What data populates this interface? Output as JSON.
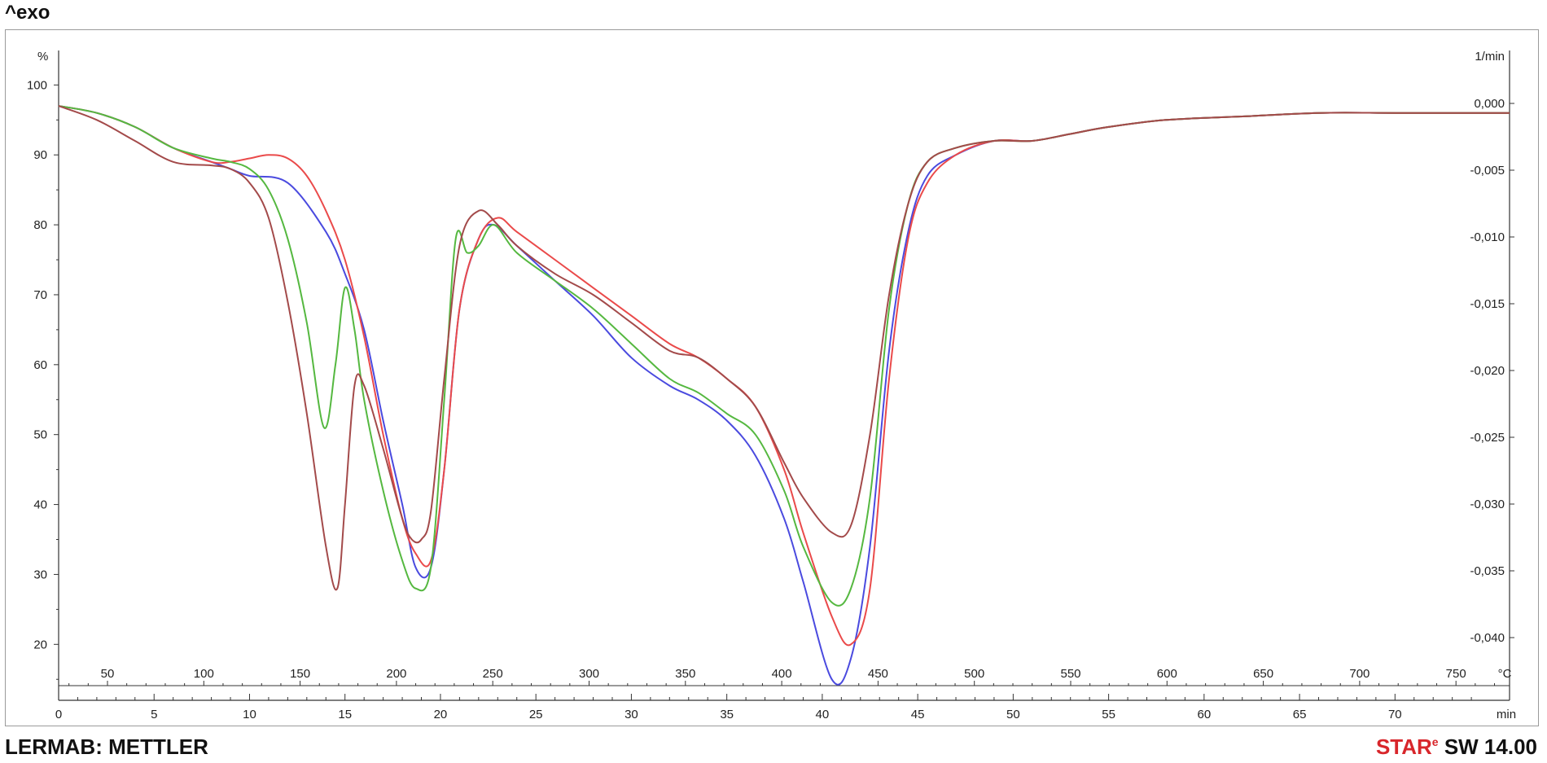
{
  "header": {
    "exo_label": "^exo"
  },
  "footer": {
    "left_text": "LERMAB: METTLER",
    "brand_red": "STAR",
    "brand_mark": "e",
    "version": "SW 14.00"
  },
  "chart_data": {
    "type": "line",
    "title": "",
    "left_axis": {
      "unit": "%",
      "ticks": [
        20,
        30,
        40,
        50,
        60,
        70,
        80,
        90,
        100
      ],
      "ylim": [
        12,
        104
      ]
    },
    "right_axis": {
      "unit": "1/min",
      "ticks": [
        "0,000",
        "-0,005",
        "-0,010",
        "-0,015",
        "-0,020",
        "-0,025",
        "-0,030",
        "-0,035",
        "-0,040"
      ]
    },
    "time_axis": {
      "unit": "min",
      "ticks": [
        0,
        5,
        10,
        15,
        20,
        25,
        30,
        35,
        40,
        45,
        50,
        55,
        60,
        65,
        70
      ],
      "xlim": [
        0,
        76
      ]
    },
    "temperature_axis": {
      "unit": "°C",
      "ticks": [
        50,
        100,
        150,
        200,
        250,
        300,
        350,
        400,
        450,
        500,
        550,
        600,
        650,
        700,
        750
      ]
    },
    "series": [
      {
        "color": "#4a4adf",
        "x": [
          0,
          2,
          4,
          6,
          8,
          9,
          10,
          12,
          14,
          15,
          16,
          17,
          18,
          18.7,
          19.5,
          20.2,
          21,
          22,
          22.8,
          24,
          26,
          28,
          30,
          32,
          33.5,
          35,
          36.5,
          38,
          39,
          40.5,
          41.5,
          42.5,
          43.5,
          44.5,
          45.5,
          47,
          49,
          51,
          53,
          55,
          58,
          62,
          66,
          70,
          74,
          76
        ],
        "y": [
          97,
          96,
          94,
          91,
          89,
          88,
          87,
          86,
          79,
          73,
          65,
          52,
          40,
          31,
          31,
          45,
          68,
          78,
          80,
          77,
          72,
          67,
          61,
          57,
          55,
          52,
          47,
          38,
          29,
          15,
          18,
          34,
          62,
          79,
          87,
          90,
          92,
          92,
          93,
          94,
          95,
          95.5,
          96,
          96,
          96,
          96
        ]
      },
      {
        "color": "#ea4a4a",
        "x": [
          0,
          2,
          4,
          6,
          8,
          9,
          10,
          11,
          12,
          13,
          14,
          15,
          16,
          17,
          18,
          18.7,
          19.5,
          20.2,
          21,
          22,
          23,
          24,
          26,
          28,
          30,
          32,
          33.5,
          35,
          36.5,
          38,
          39,
          40.5,
          41.5,
          42.5,
          43.5,
          44.5,
          45.5,
          47,
          49,
          51,
          53,
          55,
          58,
          62,
          66,
          70,
          74,
          76
        ],
        "y": [
          97,
          96,
          94,
          91,
          89,
          89,
          89.5,
          90,
          89.5,
          87,
          82,
          75,
          64,
          50,
          38,
          33,
          32,
          45,
          68,
          78,
          81,
          79,
          75,
          71,
          67,
          63,
          61,
          58,
          54,
          45,
          36,
          24,
          20,
          28,
          58,
          78,
          86,
          90,
          92,
          92,
          93,
          94,
          95,
          95.5,
          96,
          96,
          96,
          96
        ]
      },
      {
        "color": "#55b840",
        "x": [
          0,
          2,
          4,
          6,
          8,
          9,
          10,
          11,
          12,
          13,
          13.9,
          14.5,
          15,
          15.5,
          16,
          17,
          18,
          18.7,
          19.5,
          20.2,
          20.8,
          21.4,
          22,
          22.8,
          24,
          26,
          28,
          30,
          32,
          33.5,
          35,
          36.5,
          38,
          39,
          40.5,
          41.5,
          42.5,
          43.5,
          44.5,
          45.5,
          47,
          49,
          51,
          53,
          55,
          58,
          62,
          66,
          70,
          74,
          76
        ],
        "y": [
          97,
          96,
          94,
          91,
          89.5,
          89,
          88,
          85,
          78,
          66,
          51,
          60,
          71,
          65,
          55,
          42,
          32,
          28,
          31,
          55,
          78,
          76,
          77,
          80,
          76,
          72,
          68,
          63,
          58,
          56,
          53,
          50,
          42,
          34,
          26,
          28,
          41,
          68,
          83,
          89,
          91,
          92,
          92,
          93,
          94,
          95,
          95.5,
          96,
          96,
          96,
          96
        ]
      },
      {
        "color": "#a34a4a",
        "x": [
          0,
          2,
          4,
          6,
          8,
          9,
          10,
          11,
          12,
          13,
          14,
          14.6,
          15,
          15.5,
          16,
          17,
          18,
          18.5,
          19,
          19.5,
          20.2,
          21,
          22,
          23,
          24,
          26,
          28,
          30,
          32,
          33.5,
          35,
          36.5,
          38,
          39,
          40.5,
          41.5,
          42.5,
          43.5,
          44.5,
          45.5,
          47,
          49,
          51,
          53,
          55,
          58,
          62,
          66,
          70,
          74,
          76
        ],
        "y": [
          97,
          95,
          92,
          89,
          88.5,
          88,
          86,
          81,
          69,
          53,
          34,
          28,
          40,
          57,
          57,
          48,
          38,
          35,
          35,
          39,
          58,
          77,
          82,
          80,
          77,
          73,
          70,
          66,
          62,
          61,
          58,
          54,
          46,
          41,
          36,
          37,
          50,
          70,
          83,
          89,
          91,
          92,
          92,
          93,
          94,
          95,
          95.5,
          96,
          96,
          96,
          96
        ]
      }
    ]
  }
}
